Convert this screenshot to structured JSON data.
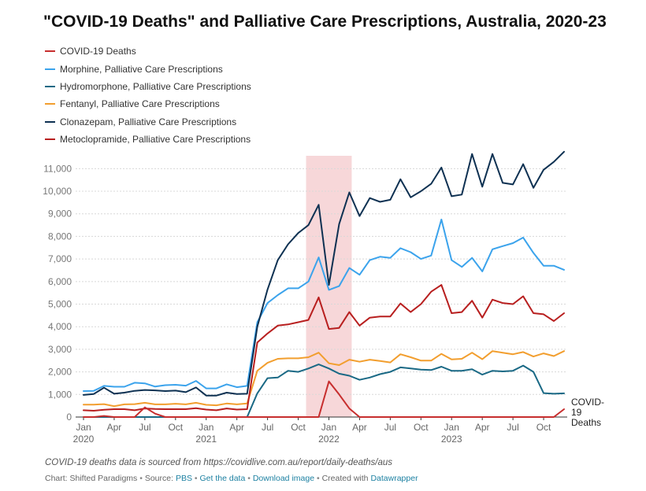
{
  "chart_data": {
    "type": "line",
    "title": "\"COVID-19 Deaths\" and Palliative Care Prescriptions, Australia, 2020-23",
    "xlabel": "",
    "ylabel": "",
    "ylim": [
      0,
      11500
    ],
    "y_ticks": [
      0,
      1000,
      2000,
      3000,
      4000,
      5000,
      6000,
      7000,
      8000,
      9000,
      10000,
      11000
    ],
    "y_tick_labels": [
      "0",
      "1,000",
      "2,000",
      "3,000",
      "4,000",
      "5,000",
      "6,000",
      "7,000",
      "8,000",
      "9,000",
      "10,000",
      "11,000"
    ],
    "grid": true,
    "legend_position": "top-left",
    "x_months": [
      "2020-01",
      "2020-02",
      "2020-03",
      "2020-04",
      "2020-05",
      "2020-06",
      "2020-07",
      "2020-08",
      "2020-09",
      "2020-10",
      "2020-11",
      "2020-12",
      "2021-01",
      "2021-02",
      "2021-03",
      "2021-04",
      "2021-05",
      "2021-06",
      "2021-07",
      "2021-08",
      "2021-09",
      "2021-10",
      "2021-11",
      "2021-12",
      "2022-01",
      "2022-02",
      "2022-03",
      "2022-04",
      "2022-05",
      "2022-06",
      "2022-07",
      "2022-08",
      "2022-09",
      "2022-10",
      "2022-11",
      "2022-12",
      "2023-01",
      "2023-02",
      "2023-03",
      "2023-04",
      "2023-05",
      "2023-06",
      "2023-07",
      "2023-08",
      "2023-09",
      "2023-10",
      "2023-11",
      "2023-12"
    ],
    "x_ticks": [
      {
        "month": "2020-01",
        "label": "Jan",
        "year": "2020"
      },
      {
        "month": "2020-04",
        "label": "Apr",
        "year": ""
      },
      {
        "month": "2020-07",
        "label": "Jul",
        "year": ""
      },
      {
        "month": "2020-10",
        "label": "Oct",
        "year": ""
      },
      {
        "month": "2021-01",
        "label": "Jan",
        "year": "2021"
      },
      {
        "month": "2021-04",
        "label": "Apr",
        "year": ""
      },
      {
        "month": "2021-07",
        "label": "Jul",
        "year": ""
      },
      {
        "month": "2021-10",
        "label": "Oct",
        "year": ""
      },
      {
        "month": "2022-01",
        "label": "Jan",
        "year": "2022"
      },
      {
        "month": "2022-04",
        "label": "Apr",
        "year": ""
      },
      {
        "month": "2022-07",
        "label": "Jul",
        "year": ""
      },
      {
        "month": "2022-10",
        "label": "Oct",
        "year": ""
      },
      {
        "month": "2023-01",
        "label": "Jan",
        "year": "2023"
      },
      {
        "month": "2023-04",
        "label": "Apr",
        "year": ""
      },
      {
        "month": "2023-07",
        "label": "Jul",
        "year": ""
      },
      {
        "month": "2023-10",
        "label": "Oct",
        "year": ""
      }
    ],
    "highlight_band": {
      "from": "2021-11",
      "to": "2022-03",
      "color": "#f7d7d9"
    },
    "end_label": {
      "series": "COVID-19 Deaths",
      "lines": [
        "COVID-",
        "19",
        "Deaths"
      ]
    },
    "series": [
      {
        "name": "COVID-19 Deaths",
        "color": "#c72e2e",
        "values": [
          0,
          0,
          50,
          0,
          0,
          0,
          430,
          150,
          0,
          0,
          0,
          0,
          0,
          0,
          0,
          0,
          0,
          0,
          0,
          0,
          0,
          0,
          0,
          0,
          1580,
          1000,
          380,
          0,
          0,
          0,
          0,
          0,
          0,
          0,
          0,
          0,
          0,
          0,
          0,
          0,
          0,
          0,
          0,
          0,
          0,
          0,
          0,
          350
        ]
      },
      {
        "name": "Morphine, Palliative Care Prescriptions",
        "color": "#3ba3ec",
        "values": [
          1150,
          1160,
          1380,
          1340,
          1340,
          1520,
          1490,
          1350,
          1410,
          1430,
          1390,
          1600,
          1270,
          1270,
          1450,
          1320,
          1380,
          4200,
          5050,
          5400,
          5700,
          5700,
          6000,
          7070,
          5630,
          5800,
          6600,
          6300,
          6950,
          7100,
          7050,
          7480,
          7300,
          7000,
          7150,
          8750,
          6950,
          6650,
          7050,
          6450,
          7430,
          7570,
          7700,
          7950,
          7270,
          6700,
          6700,
          6520
        ]
      },
      {
        "name": "Hydromorphone, Palliative Care Prescriptions",
        "color": "#1a6985",
        "values": [
          0,
          0,
          0,
          0,
          0,
          0,
          0,
          0,
          0,
          0,
          0,
          0,
          0,
          0,
          0,
          0,
          0,
          1050,
          1720,
          1750,
          2050,
          2000,
          2150,
          2330,
          2150,
          1920,
          1830,
          1650,
          1750,
          1900,
          2000,
          2200,
          2150,
          2100,
          2080,
          2230,
          2050,
          2050,
          2120,
          1880,
          2050,
          2020,
          2050,
          2280,
          2000,
          1060,
          1030,
          1050
        ]
      },
      {
        "name": "Fentanyl, Palliative Care Prescriptions",
        "color": "#f29e2e",
        "values": [
          550,
          550,
          570,
          480,
          560,
          570,
          630,
          560,
          560,
          590,
          560,
          630,
          540,
          520,
          600,
          560,
          600,
          2050,
          2400,
          2580,
          2600,
          2600,
          2650,
          2850,
          2380,
          2300,
          2540,
          2450,
          2540,
          2480,
          2420,
          2780,
          2650,
          2500,
          2500,
          2800,
          2550,
          2580,
          2850,
          2560,
          2920,
          2850,
          2780,
          2880,
          2680,
          2820,
          2700,
          2920
        ]
      },
      {
        "name": "Clonazepam, Palliative Care Prescriptions",
        "color": "#0e3152",
        "values": [
          980,
          1020,
          1300,
          1030,
          1080,
          1160,
          1200,
          1180,
          1150,
          1170,
          1100,
          1310,
          950,
          950,
          1080,
          1020,
          1030,
          4000,
          5650,
          6950,
          7650,
          8150,
          8500,
          9400,
          5850,
          8550,
          9950,
          8900,
          9700,
          9530,
          9620,
          10530,
          9730,
          10000,
          10330,
          11050,
          9780,
          9850,
          11650,
          10200,
          11650,
          10370,
          10300,
          11200,
          10150,
          10950,
          11300,
          11750
        ]
      },
      {
        "name": "Metoclopramide, Palliative Care Prescriptions",
        "color": "#b81f1f",
        "values": [
          300,
          280,
          320,
          350,
          350,
          300,
          380,
          360,
          350,
          350,
          350,
          390,
          330,
          300,
          380,
          330,
          350,
          3300,
          3700,
          4050,
          4100,
          4200,
          4300,
          5300,
          3900,
          3950,
          4650,
          4050,
          4400,
          4450,
          4450,
          5030,
          4650,
          5000,
          5550,
          5850,
          4600,
          4650,
          5150,
          4400,
          5200,
          5050,
          5000,
          5350,
          4600,
          4550,
          4250,
          4600
        ]
      }
    ]
  },
  "notes": {
    "source_note": "COVID-19 deaths data is sourced from https://covidlive.com.au/report/daily-deaths/aus",
    "credit_prefix": "Chart: Shifted Paradigms",
    "credit_source_prefix": "Source:",
    "credit_source": "PBS",
    "credit_get_data": "Get the data",
    "credit_download": "Download image",
    "credit_created": "Created with",
    "credit_tool": "Datawrapper",
    "separator": "•"
  }
}
